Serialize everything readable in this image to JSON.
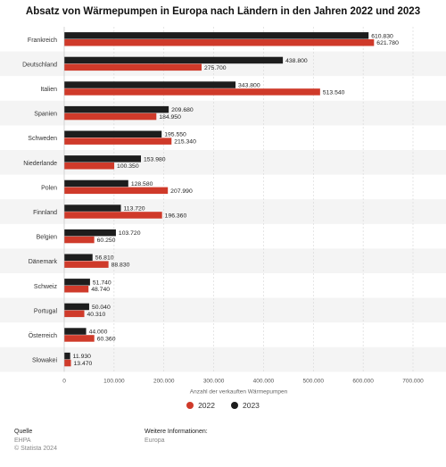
{
  "title": "Absatz von Wärmepumpen in Europa nach Ländern in den Jahren 2022 und 2023",
  "colors": {
    "2022": "#cf3a2a",
    "2023": "#1d1d1d",
    "band": "#f4f4f4"
  },
  "chart_data": {
    "type": "bar",
    "orientation": "horizontal",
    "categories": [
      "Frankreich",
      "Deutschland",
      "Italien",
      "Spanien",
      "Schweden",
      "Niederlande",
      "Polen",
      "Finnland",
      "Belgien",
      "Dänemark",
      "Schweiz",
      "Portugal",
      "Österreich",
      "Slowakei"
    ],
    "series": [
      {
        "name": "2023",
        "values": [
          610830,
          438800,
          343800,
          209680,
          195550,
          153980,
          128580,
          113720,
          103720,
          56810,
          51740,
          50040,
          44000,
          11930
        ],
        "labels": [
          "610.830",
          "438.800",
          "343.800",
          "209.680",
          "195.550",
          "153.980",
          "128.580",
          "113.720",
          "103.720",
          "56.810",
          "51.740",
          "50.040",
          "44.000",
          "11.930"
        ]
      },
      {
        "name": "2022",
        "values": [
          621780,
          275700,
          513540,
          184950,
          215340,
          100350,
          207990,
          196360,
          60250,
          88830,
          48740,
          40310,
          60360,
          13470
        ],
        "labels": [
          "621.780",
          "275.700",
          "513.540",
          "184.950",
          "215.340",
          "100.350",
          "207.990",
          "196.360",
          "60.250",
          "88.830",
          "48.740",
          "40.310",
          "60.360",
          "13.470"
        ]
      }
    ],
    "xlim": [
      0,
      700000
    ],
    "ticks": [
      0,
      100000,
      200000,
      300000,
      400000,
      500000,
      600000,
      700000
    ],
    "tick_labels": [
      "0",
      "100.000",
      "200.000",
      "300.000",
      "400.000",
      "500.000",
      "600.000",
      "700.000"
    ],
    "xlabel": "Anzahl der verkauften Wärmepumpen",
    "legend": [
      {
        "label": "2022",
        "series": "2022"
      },
      {
        "label": "2023",
        "series": "2023"
      }
    ],
    "legend_position": "bottom",
    "grid": true
  },
  "footer": {
    "source_heading": "Quelle",
    "source": "EHPA",
    "copyright": "© Statista 2024",
    "info_heading": "Weitere Informationen:",
    "info": "Europa"
  }
}
